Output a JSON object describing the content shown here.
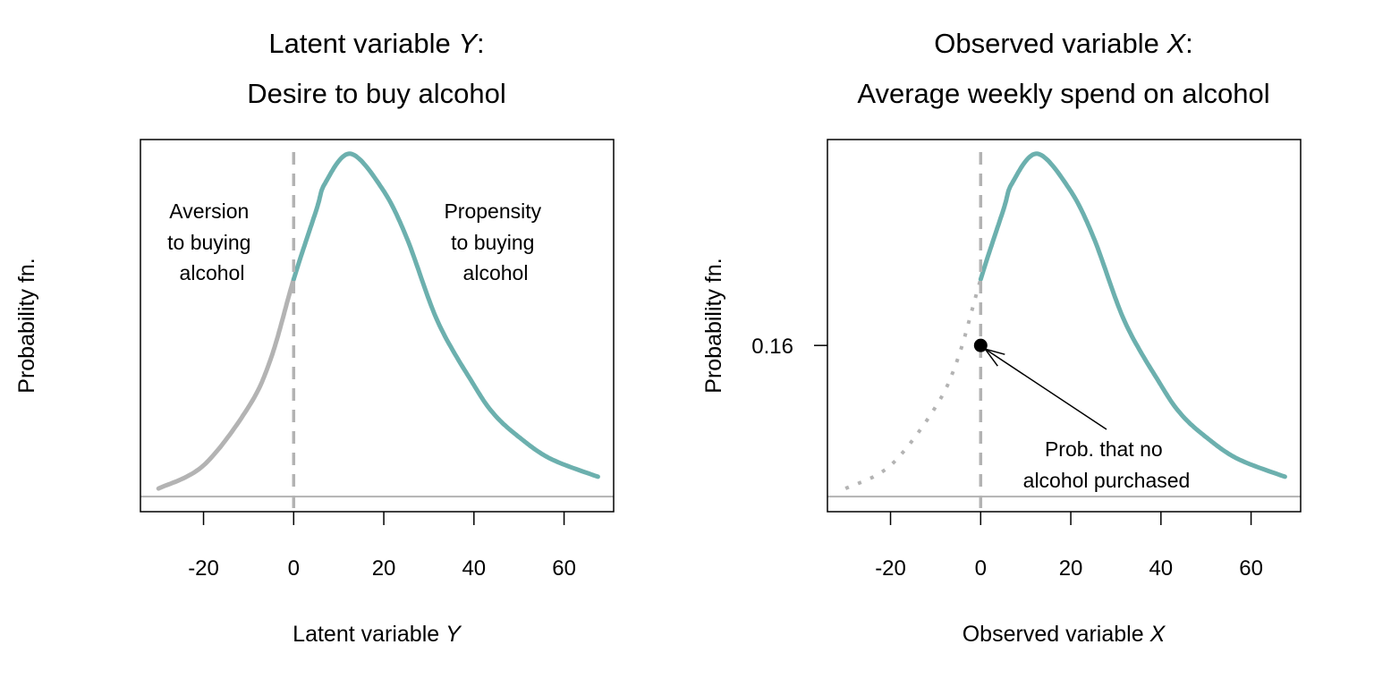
{
  "colors": {
    "curve": "#6cb0ae",
    "muted": "#b3b3b3",
    "axis": "#000000",
    "point": "#000000"
  },
  "chart_data": [
    {
      "type": "line",
      "title": [
        "Latent variable Y:",
        "Desire to buy alcohol"
      ],
      "title_parts": {
        "line1_prefix": "Latent variable ",
        "line1_var": "Y",
        "line1_suffix": ":",
        "line2": "Desire to buy alcohol"
      },
      "xlabel": "Latent variable Y",
      "xlabel_parts": {
        "prefix": "Latent variable ",
        "var": "Y"
      },
      "ylabel": "Probability fn.",
      "xlim": [
        -34,
        71
      ],
      "ylim": [
        -0.016,
        0.378
      ],
      "xticks": [
        "-20",
        "0",
        "20",
        "40",
        "60"
      ],
      "xtick_values": [
        -20,
        0,
        20,
        40,
        60
      ],
      "yticks": [],
      "threshold_x": 0,
      "curve": {
        "x": [
          -30,
          -20,
          -10,
          -5,
          0,
          5,
          7,
          12.5,
          19.5,
          25,
          32,
          40,
          44.5,
          50,
          57,
          67.5
        ],
        "y": [
          0.0085,
          0.033,
          0.095,
          0.147,
          0.23,
          0.303,
          0.332,
          0.363,
          0.327,
          0.275,
          0.185,
          0.118,
          0.087,
          0.063,
          0.04,
          0.021
        ]
      },
      "left_segment_style": "solid-gray",
      "annotations": [
        {
          "lines": [
            "Aversion",
            "to buying",
            "alcohol"
          ]
        },
        {
          "lines": [
            "Propensity",
            "to buying",
            "alcohol"
          ]
        }
      ]
    },
    {
      "type": "line",
      "title": [
        "Observed variable X:",
        "Average weekly spend on alcohol"
      ],
      "title_parts": {
        "line1_prefix": "Observed variable ",
        "line1_var": "X",
        "line1_suffix": ":",
        "line2": "Average weekly spend on alcohol"
      },
      "xlabel": "Observed variable X",
      "xlabel_parts": {
        "prefix": "Observed variable ",
        "var": "X"
      },
      "ylabel": "Probability fn.",
      "xlim": [
        -34,
        71
      ],
      "ylim": [
        -0.016,
        0.378
      ],
      "xticks": [
        "-20",
        "0",
        "20",
        "40",
        "60"
      ],
      "xtick_values": [
        -20,
        0,
        20,
        40,
        60
      ],
      "yticks": [
        "0.16"
      ],
      "ytick_values": [
        0.16
      ],
      "threshold_x": 0,
      "curve": {
        "x": [
          -30,
          -20,
          -10,
          -5,
          0,
          5,
          7,
          12.5,
          19.5,
          25,
          32,
          40,
          44.5,
          50,
          57,
          67.5
        ],
        "y": [
          0.0085,
          0.033,
          0.095,
          0.147,
          0.23,
          0.303,
          0.332,
          0.363,
          0.327,
          0.275,
          0.185,
          0.118,
          0.087,
          0.063,
          0.04,
          0.021
        ]
      },
      "left_segment_style": "dotted-gray",
      "point": {
        "x": 0,
        "y": 0.16
      },
      "annotations": [
        {
          "lines": [
            "Prob. that no",
            "alcohol purchased"
          ]
        }
      ]
    }
  ]
}
